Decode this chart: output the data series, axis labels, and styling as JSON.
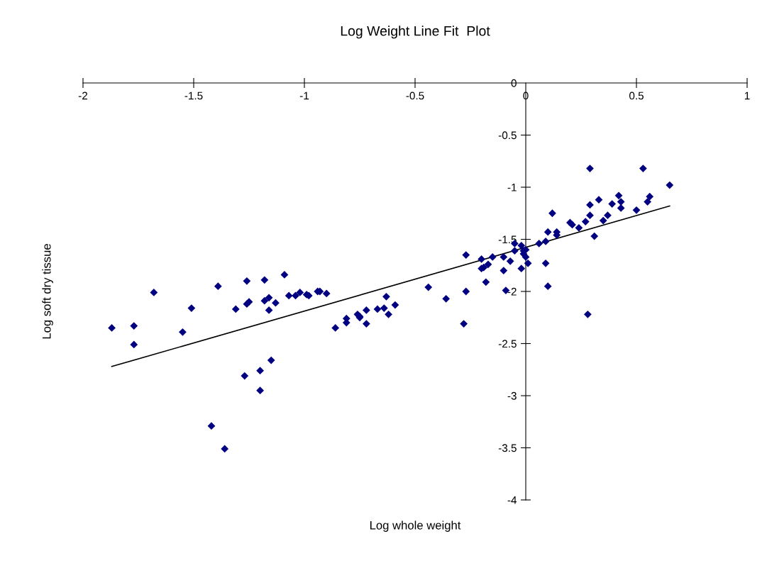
{
  "chart_data": {
    "type": "scatter",
    "title": "Log Weight Line Fit  Plot",
    "xlabel": "Log whole weight",
    "ylabel": "Log soft dry tissue",
    "xlim": [
      -2,
      1
    ],
    "xticks": [
      -2,
      -1.5,
      -1,
      -0.5,
      0,
      0.5,
      1
    ],
    "ylim": [
      -4,
      0
    ],
    "yticks": [
      -4,
      -3.5,
      -3,
      -2.5,
      -2,
      -1.5,
      -1,
      -0.5,
      0
    ],
    "grid": false,
    "legend": false,
    "marker": "diamond",
    "series": [
      {
        "color": "#000080",
        "x": [
          -1.87,
          -1.77,
          -1.77,
          -1.68,
          -1.55,
          -1.51,
          -1.39,
          -1.42,
          -1.36,
          -1.31,
          -1.26,
          -1.26,
          -1.25,
          -1.27,
          -1.2,
          -1.2,
          -1.15,
          -1.18,
          -1.18,
          -1.16,
          -1.13,
          -1.16,
          -1.09,
          -1.07,
          -1.04,
          -1.02,
          -0.99,
          -0.98,
          -0.94,
          -0.93,
          -0.9,
          -0.86,
          -0.81,
          -0.81,
          -0.76,
          -0.75,
          -0.75,
          -0.72,
          -0.72,
          -0.67,
          -0.64,
          -0.63,
          -0.62,
          -0.59,
          -0.44,
          -0.36,
          -0.28,
          -0.27,
          -0.27,
          -0.18,
          -0.2,
          -0.17,
          -0.19,
          -0.2,
          -0.15,
          -0.1,
          -0.1,
          -0.09,
          -0.07,
          -0.05,
          -0.05,
          -0.02,
          -0.02,
          -0.01,
          -0.01,
          0.0,
          0.0,
          0.01,
          0.06,
          0.09,
          0.09,
          0.1,
          0.1,
          0.12,
          0.14,
          0.14,
          0.2,
          0.21,
          0.24,
          0.27,
          0.29,
          0.29,
          0.29,
          0.28,
          0.31,
          0.33,
          0.35,
          0.37,
          0.39,
          0.42,
          0.43,
          0.43,
          0.5,
          0.53,
          0.55,
          0.56,
          0.65
        ],
        "values": [
          -2.35,
          -2.33,
          -2.51,
          -2.01,
          -2.39,
          -2.16,
          -1.95,
          -3.29,
          -3.51,
          -2.17,
          -1.9,
          -2.12,
          -2.1,
          -2.81,
          -2.76,
          -2.95,
          -2.66,
          -1.89,
          -2.09,
          -2.06,
          -2.11,
          -2.18,
          -1.84,
          -2.04,
          -2.04,
          -2.01,
          -2.03,
          -2.04,
          -2.0,
          -2.0,
          -2.02,
          -2.35,
          -2.26,
          -2.3,
          -2.22,
          -2.25,
          -2.24,
          -2.18,
          -2.31,
          -2.17,
          -2.16,
          -2.05,
          -2.22,
          -2.13,
          -1.96,
          -2.07,
          -2.31,
          -2.0,
          -1.65,
          -1.91,
          -1.78,
          -1.74,
          -1.77,
          -1.69,
          -1.67,
          -1.67,
          -1.8,
          -1.99,
          -1.71,
          -1.54,
          -1.61,
          -1.56,
          -1.78,
          -1.61,
          -1.64,
          -1.67,
          -1.6,
          -1.73,
          -1.54,
          -1.52,
          -1.73,
          -1.95,
          -1.43,
          -1.25,
          -1.43,
          -1.46,
          -1.34,
          -1.36,
          -1.39,
          -1.33,
          -0.82,
          -1.17,
          -1.27,
          -2.22,
          -1.47,
          -1.12,
          -1.32,
          -1.27,
          -1.16,
          -1.08,
          -1.14,
          -1.2,
          -1.22,
          -0.82,
          -1.14,
          -1.09,
          -0.98
        ]
      },
      {
        "type": "line",
        "color": "#000000",
        "marker": "none",
        "line_style": "solid",
        "x": [
          -1.87,
          0.65
        ],
        "values": [
          -2.72,
          -1.18
        ]
      }
    ]
  }
}
